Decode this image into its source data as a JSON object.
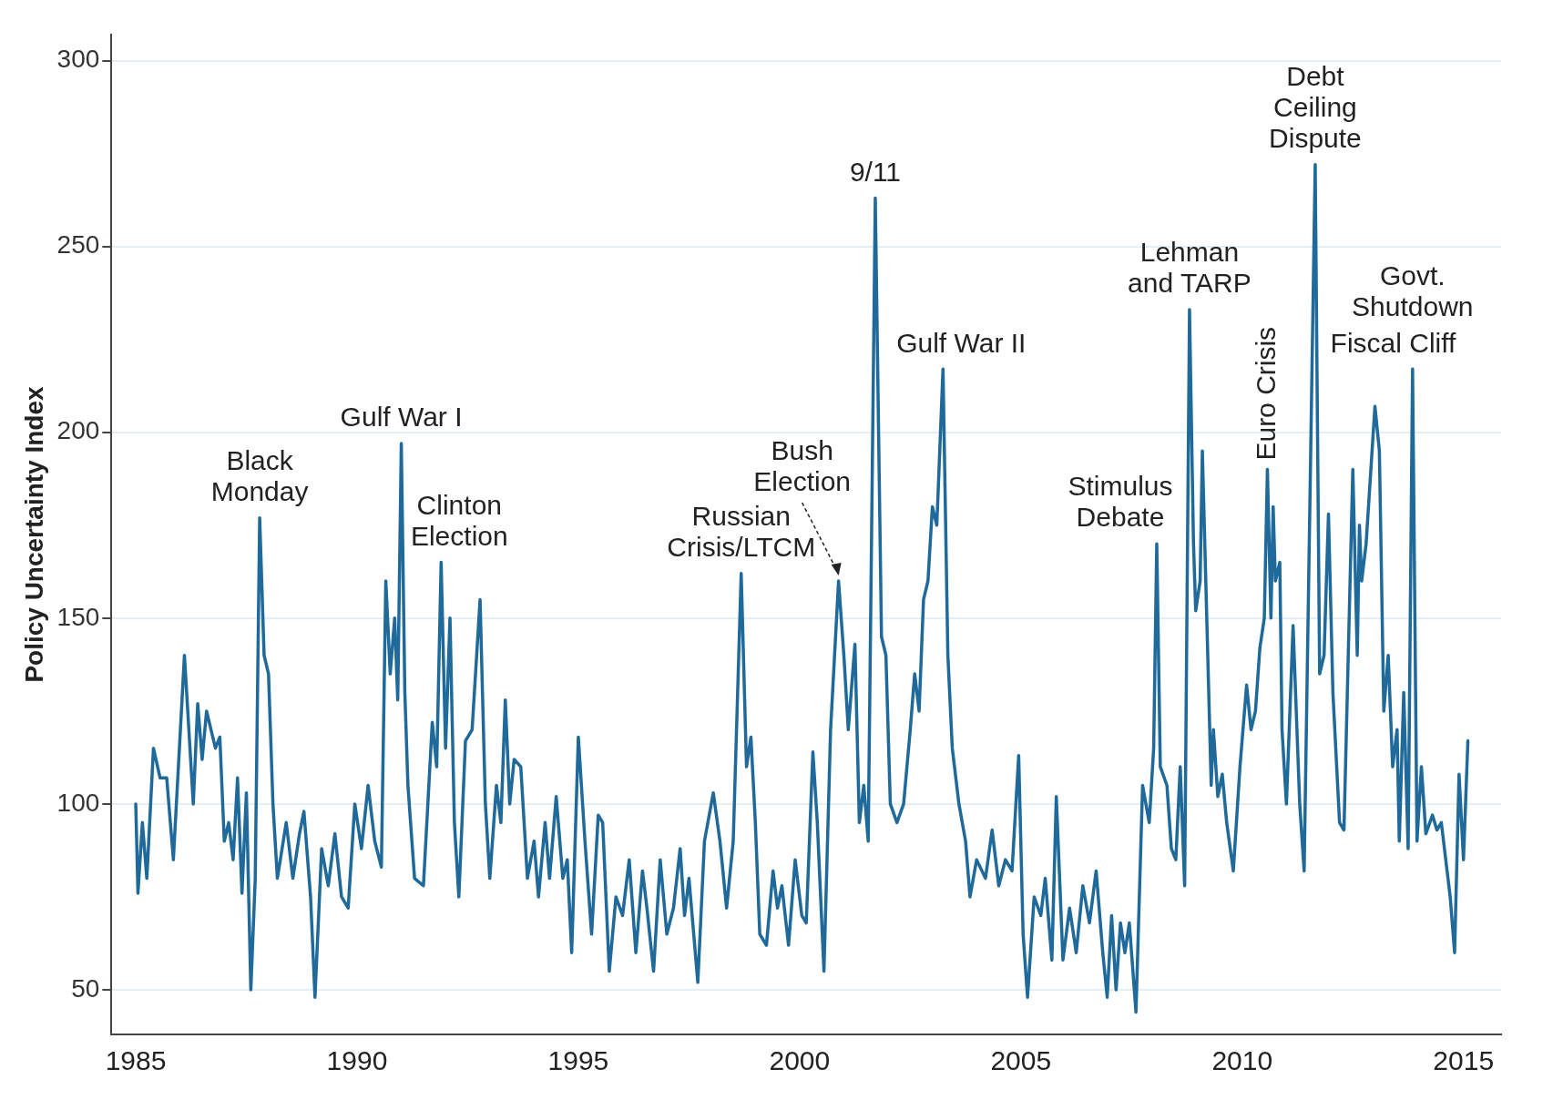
{
  "chart_data": {
    "type": "line",
    "ylabel": "Policy Uncertainty Index",
    "xlim": [
      1984.45,
      2015.85
    ],
    "xticks": [
      1985,
      1990,
      1995,
      2000,
      2005,
      2010,
      2015
    ],
    "ylim": [
      38,
      307
    ],
    "yticks": [
      50,
      100,
      150,
      200,
      250,
      300
    ],
    "grid": "y",
    "legend": false,
    "marker": "none",
    "line_style": "solid",
    "series": [
      {
        "color": "#1f6a9a",
        "x": [
          1985.0,
          1985.05,
          1985.15,
          1985.25,
          1985.4,
          1985.55,
          1985.7,
          1985.85,
          1986.1,
          1986.3,
          1986.4,
          1986.5,
          1986.6,
          1986.8,
          1986.9,
          1987.0,
          1987.1,
          1987.2,
          1987.3,
          1987.4,
          1987.5,
          1987.6,
          1987.7,
          1987.8,
          1987.9,
          1988.0,
          1988.1,
          1988.2,
          1988.4,
          1988.55,
          1988.7,
          1988.8,
          1988.95,
          1989.05,
          1989.2,
          1989.35,
          1989.5,
          1989.65,
          1989.8,
          1989.95,
          1990.1,
          1990.25,
          1990.4,
          1990.55,
          1990.65,
          1990.75,
          1990.85,
          1990.92,
          1991.0,
          1991.08,
          1991.15,
          1991.3,
          1991.5,
          1991.7,
          1991.8,
          1991.9,
          1992.0,
          1992.1,
          1992.2,
          1992.3,
          1992.45,
          1992.6,
          1992.78,
          1992.9,
          1993.0,
          1993.15,
          1993.25,
          1993.35,
          1993.45,
          1993.55,
          1993.7,
          1993.85,
          1994.0,
          1994.1,
          1994.25,
          1994.35,
          1994.5,
          1994.65,
          1994.75,
          1994.85,
          1995.0,
          1995.15,
          1995.3,
          1995.45,
          1995.55,
          1995.7,
          1995.85,
          1996.0,
          1996.15,
          1996.3,
          1996.45,
          1996.55,
          1996.7,
          1996.85,
          1997.0,
          1997.15,
          1997.3,
          1997.4,
          1997.5,
          1997.7,
          1997.85,
          1998.05,
          1998.2,
          1998.35,
          1998.5,
          1998.68,
          1998.8,
          1998.9,
          1999.0,
          1999.1,
          1999.25,
          1999.4,
          1999.5,
          1999.6,
          1999.75,
          1999.9,
          2000.05,
          2000.15,
          2000.3,
          2000.4,
          2000.55,
          2000.7,
          2000.88,
          2001.0,
          2001.1,
          2001.25,
          2001.35,
          2001.45,
          2001.55,
          2001.71,
          2001.85,
          2001.95,
          2002.05,
          2002.2,
          2002.35,
          2002.5,
          2002.6,
          2002.7,
          2002.8,
          2002.9,
          2003.0,
          2003.1,
          2003.24,
          2003.35,
          2003.45,
          2003.6,
          2003.75,
          2003.85,
          2004.0,
          2004.2,
          2004.35,
          2004.5,
          2004.65,
          2004.8,
          2004.95,
          2005.05,
          2005.15,
          2005.3,
          2005.45,
          2005.55,
          2005.7,
          2005.8,
          2005.95,
          2006.1,
          2006.25,
          2006.4,
          2006.55,
          2006.7,
          2006.85,
          2006.95,
          2007.05,
          2007.15,
          2007.25,
          2007.35,
          2007.45,
          2007.6,
          2007.75,
          2007.9,
          2008.0,
          2008.07,
          2008.15,
          2008.3,
          2008.4,
          2008.5,
          2008.6,
          2008.7,
          2008.81,
          2008.9,
          2008.95,
          2009.05,
          2009.1,
          2009.2,
          2009.3,
          2009.35,
          2009.45,
          2009.55,
          2009.65,
          2009.8,
          2009.95,
          2010.1,
          2010.2,
          2010.3,
          2010.4,
          2010.5,
          2010.57,
          2010.65,
          2010.7,
          2010.75,
          2010.85,
          2010.9,
          2011.0,
          2011.15,
          2011.3,
          2011.4,
          2011.65,
          2011.75,
          2011.85,
          2011.95,
          2012.05,
          2012.2,
          2012.3,
          2012.5,
          2012.6,
          2012.65,
          2012.7,
          2012.8,
          2013.0,
          2013.1,
          2013.2,
          2013.3,
          2013.4,
          2013.5,
          2013.55,
          2013.65,
          2013.75,
          2013.85,
          2013.95,
          2014.05,
          2014.15,
          2014.3,
          2014.4,
          2014.5,
          2014.7,
          2014.8,
          2014.9,
          2015.0,
          2015.1
        ],
        "values": [
          100,
          76,
          95,
          80,
          115,
          107,
          107,
          85,
          140,
          100,
          127,
          112,
          125,
          115,
          118,
          90,
          95,
          85,
          107,
          76,
          103,
          50,
          80,
          177,
          140,
          135,
          100,
          80,
          95,
          80,
          92,
          98,
          75,
          48,
          88,
          78,
          92,
          75,
          72,
          100,
          88,
          105,
          90,
          83,
          160,
          135,
          150,
          128,
          197,
          130,
          105,
          80,
          78,
          122,
          110,
          165,
          115,
          150,
          95,
          75,
          117,
          120,
          155,
          100,
          80,
          105,
          95,
          128,
          100,
          112,
          110,
          80,
          90,
          75,
          95,
          80,
          102,
          80,
          85,
          60,
          118,
          90,
          65,
          97,
          95,
          55,
          75,
          70,
          85,
          60,
          82,
          72,
          55,
          85,
          65,
          72,
          88,
          70,
          80,
          52,
          90,
          103,
          90,
          72,
          90,
          162,
          110,
          118,
          95,
          65,
          62,
          82,
          72,
          78,
          62,
          85,
          70,
          68,
          114,
          95,
          55,
          120,
          160,
          140,
          120,
          143,
          95,
          105,
          90,
          263,
          145,
          140,
          100,
          95,
          100,
          120,
          135,
          125,
          155,
          160,
          180,
          175,
          217,
          140,
          115,
          100,
          90,
          75,
          85,
          80,
          93,
          78,
          85,
          82,
          113,
          65,
          48,
          75,
          70,
          80,
          58,
          102,
          58,
          72,
          60,
          78,
          68,
          82,
          60,
          48,
          70,
          50,
          68,
          60,
          68,
          44,
          105,
          95,
          115,
          170,
          110,
          105,
          88,
          85,
          110,
          78,
          233,
          170,
          152,
          160,
          195,
          150,
          105,
          120,
          102,
          108,
          95,
          82,
          110,
          132,
          120,
          125,
          142,
          150,
          190,
          150,
          180,
          160,
          165,
          120,
          100,
          148,
          100,
          82,
          272,
          135,
          140,
          178,
          130,
          95,
          93,
          190,
          140,
          175,
          160,
          170,
          207,
          195,
          125,
          140,
          110,
          120,
          90,
          130,
          88,
          217,
          90,
          110,
          92,
          97,
          93,
          95,
          75,
          60,
          108,
          85,
          117
        ]
      }
    ],
    "annotations": [
      {
        "text": "Black Monday",
        "x": 1987.8,
        "y": 177
      },
      {
        "text": "Gulf War I",
        "x": 1991.0,
        "y": 197
      },
      {
        "text": "Clinton Election",
        "x": 1991.9,
        "y": 165
      },
      {
        "text": "Russian Crisis/LTCM",
        "x": 1998.68,
        "y": 162
      },
      {
        "text": "Bush Election",
        "x": 2000.88,
        "y": 160
      },
      {
        "text": "9/11",
        "x": 2001.71,
        "y": 263
      },
      {
        "text": "Gulf War II",
        "x": 2003.24,
        "y": 217
      },
      {
        "text": "Stimulus Debate",
        "x": 2008.07,
        "y": 170
      },
      {
        "text": "Lehman and TARP",
        "x": 2008.81,
        "y": 233
      },
      {
        "text": "Euro Crisis",
        "x": 2010.57,
        "y": 190
      },
      {
        "text": "Debt Ceiling Dispute",
        "x": 2011.65,
        "y": 272
      },
      {
        "text": "Fiscal Cliff",
        "x": 2013.0,
        "y": 207
      },
      {
        "text": "Govt. Shutdown",
        "x": 2013.85,
        "y": 217
      }
    ]
  }
}
